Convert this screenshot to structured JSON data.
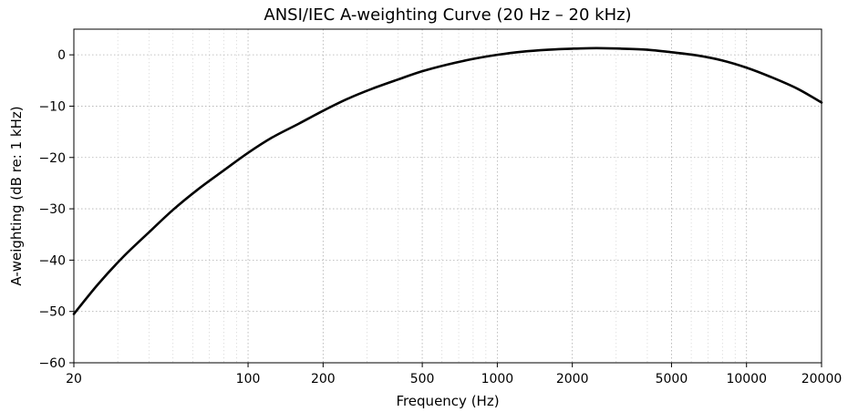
{
  "chart_data": {
    "type": "line",
    "title": "ANSI/IEC A-weighting Curve (20 Hz – 20 kHz)",
    "xlabel": "Frequency (Hz)",
    "ylabel": "A-weighting (dB re: 1 kHz)",
    "xscale": "log",
    "xlim": [
      20,
      20000
    ],
    "ylim": [
      -60,
      5
    ],
    "grid": true,
    "legend": "none",
    "x_ticks": [
      20,
      100,
      200,
      500,
      1000,
      2000,
      5000,
      10000,
      20000
    ],
    "x_tick_labels": [
      "20",
      "100",
      "200",
      "500",
      "1000",
      "2000",
      "5000",
      "10000",
      "20000"
    ],
    "y_ticks": [
      0,
      -10,
      -20,
      -30,
      -40,
      -50,
      -60
    ],
    "y_tick_labels": [
      "0",
      "−10",
      "−20",
      "−30",
      "−40",
      "−50",
      "−60"
    ],
    "line_color": "#000000",
    "series": [
      {
        "x": [
          20,
          25,
          31.5,
          40,
          50,
          63,
          80,
          100,
          125,
          160,
          200,
          250,
          315,
          400,
          500,
          630,
          800,
          1000,
          1250,
          1600,
          2000,
          2500,
          3150,
          4000,
          5000,
          6300,
          8000,
          10000,
          12500,
          16000,
          20000
        ],
        "y": [
          -50.5,
          -44.7,
          -39.4,
          -34.6,
          -30.2,
          -26.2,
          -22.5,
          -19.1,
          -16.1,
          -13.4,
          -10.9,
          -8.6,
          -6.6,
          -4.8,
          -3.2,
          -1.9,
          -0.8,
          0.0,
          0.6,
          1.0,
          1.2,
          1.3,
          1.2,
          1.0,
          0.5,
          -0.1,
          -1.1,
          -2.5,
          -4.3,
          -6.6,
          -9.3
        ]
      }
    ]
  }
}
